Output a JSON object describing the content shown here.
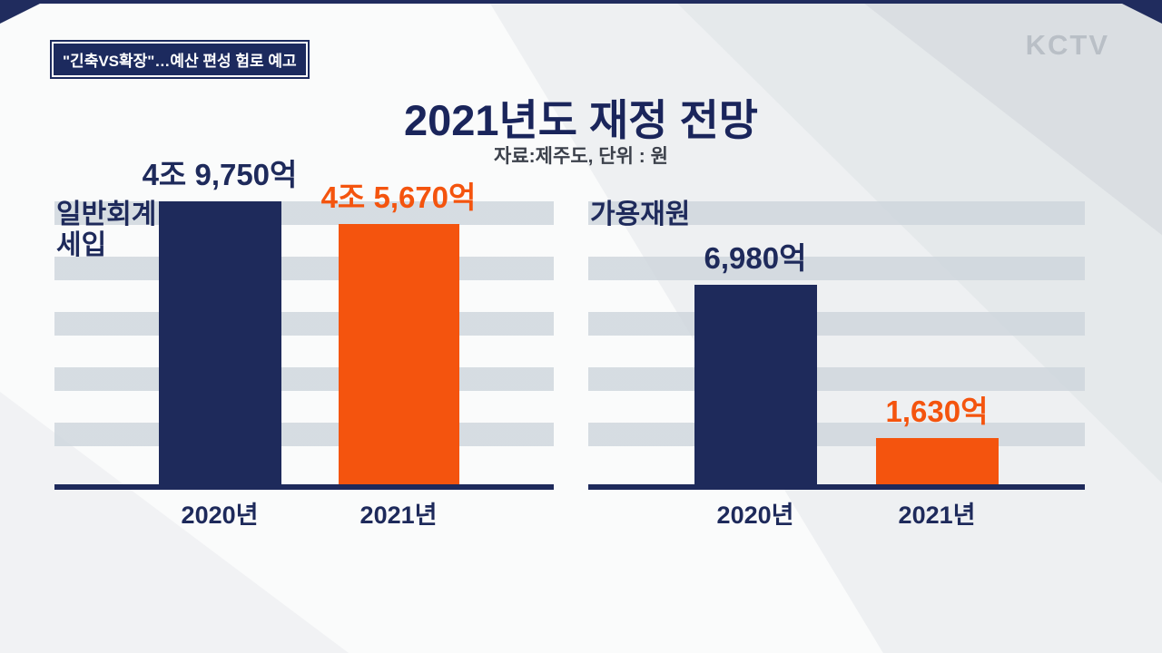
{
  "top_badge": {
    "text": "\"긴축VS확장\"…예산 편성 험로 예고"
  },
  "logo": {
    "text": "KCTV"
  },
  "header": {
    "title": "2021년도 재정 전망",
    "subtitle": "자료:제주도, 단위 : 원"
  },
  "colors": {
    "navy": "#1e2a5b",
    "orange": "#f4540e",
    "stripe": "#cdd5dc",
    "background": "#fafbfb"
  },
  "chart_data": [
    {
      "type": "bar",
      "title": "일반회계 세입",
      "title_lines": [
        "일반회계",
        "세입"
      ],
      "categories": [
        "2020년",
        "2021년"
      ],
      "values": [
        49750,
        45670
      ],
      "value_labels": [
        "4조 9,750억",
        "4조 5,670억"
      ],
      "bar_colors": [
        "#1e2a5b",
        "#f4540e"
      ],
      "ylim": [
        0,
        51300
      ],
      "grid": "horizontal-stripes",
      "legend": "none"
    },
    {
      "type": "bar",
      "title": "가용재원",
      "categories": [
        "2020년",
        "2021년"
      ],
      "values": [
        6980,
        1630
      ],
      "value_labels": [
        "6,980억",
        "1,630억"
      ],
      "bar_colors": [
        "#1e2a5b",
        "#f4540e"
      ],
      "ylim": [
        0,
        10200
      ],
      "grid": "horizontal-stripes",
      "legend": "none"
    }
  ]
}
